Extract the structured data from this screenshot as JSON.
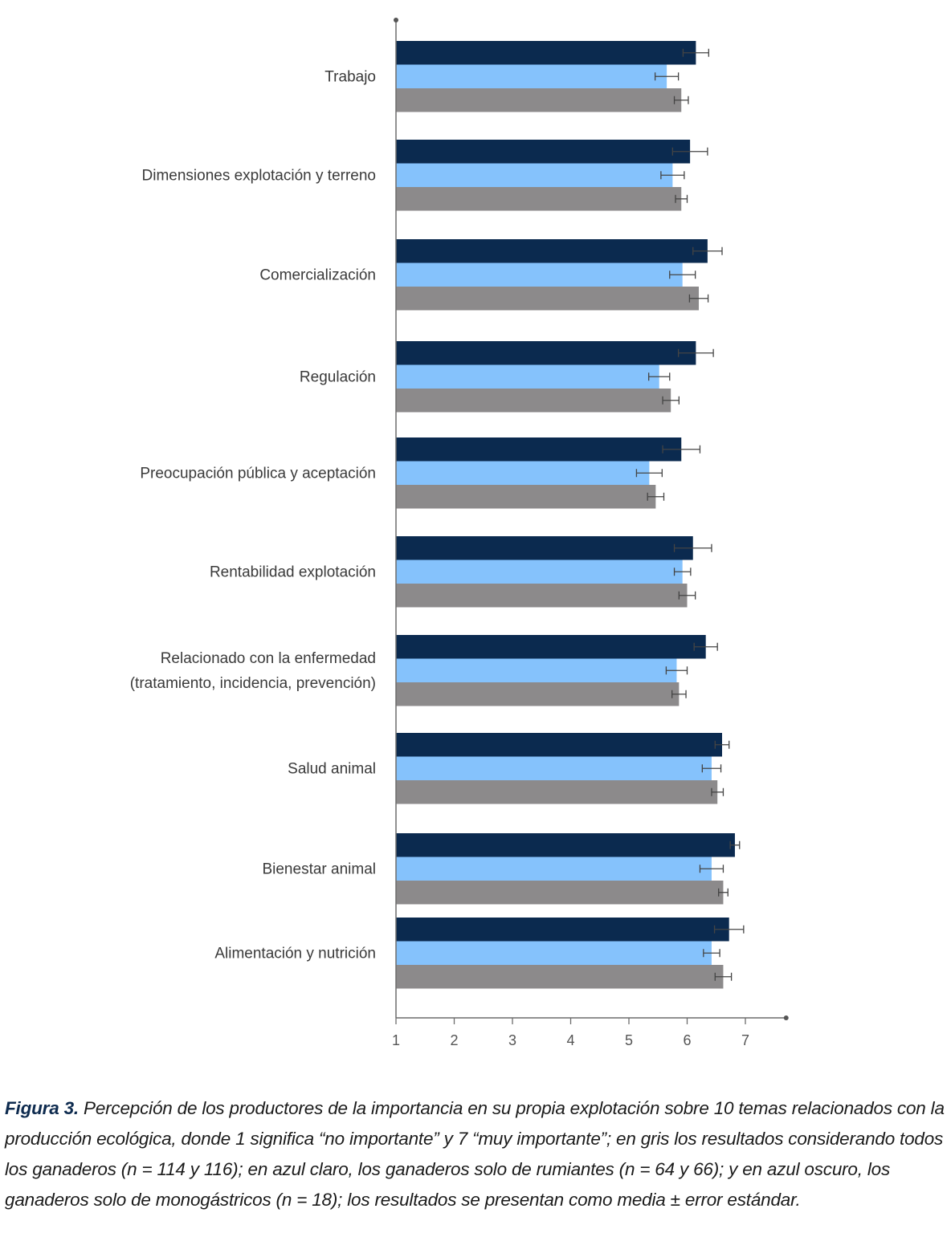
{
  "chart_data": {
    "type": "bar",
    "orientation": "horizontal",
    "categories": [
      "Trabajo",
      "Dimensiones explotación y terreno",
      "Comercialización",
      "Regulación",
      "Preocupación pública y aceptación",
      "Rentabilidad explotación",
      [
        "Relacionado con la enfermedad",
        "(tratamiento, incidencia, prevención)"
      ],
      "Salud animal",
      "Bienestar animal",
      "Alimentación y nutrición"
    ],
    "series": [
      {
        "color": "#0b2a4f",
        "values": [
          6.15,
          6.05,
          6.35,
          6.15,
          5.9,
          6.1,
          6.32,
          6.6,
          6.82,
          6.72
        ],
        "errors": [
          0.22,
          0.3,
          0.25,
          0.3,
          0.32,
          0.32,
          0.2,
          0.12,
          0.08,
          0.25
        ]
      },
      {
        "color": "#85c2fc",
        "values": [
          5.65,
          5.75,
          5.92,
          5.52,
          5.35,
          5.92,
          5.82,
          6.42,
          6.42,
          6.42
        ],
        "errors": [
          0.2,
          0.2,
          0.22,
          0.18,
          0.22,
          0.14,
          0.18,
          0.16,
          0.2,
          0.14
        ]
      },
      {
        "color": "#8c8a8b",
        "values": [
          5.9,
          5.9,
          6.2,
          5.72,
          5.46,
          6.0,
          5.86,
          6.52,
          6.62,
          6.62
        ],
        "errors": [
          0.12,
          0.1,
          0.16,
          0.14,
          0.14,
          0.14,
          0.12,
          0.1,
          0.08,
          0.14
        ]
      }
    ],
    "xlim": [
      1,
      7.7
    ],
    "xticks": [
      1,
      2,
      3,
      4,
      5,
      6,
      7
    ],
    "grid": false
  },
  "caption": {
    "label": "Figura 3.",
    "text": " Percepción de los productores de la importancia en su propia explotación sobre 10 temas relacionados con la producción ecológica, donde 1 significa “no importante” y 7 “muy importante”; en gris los resultados considerando todos los ganaderos (n = 114 y 116); en azul claro, los ganaderos solo de rumiantes (n = 64 y 66); y en azul oscuro, los ganaderos solo de monogástricos (n = 18); los resultados se presentan como media ± error estándar."
  }
}
